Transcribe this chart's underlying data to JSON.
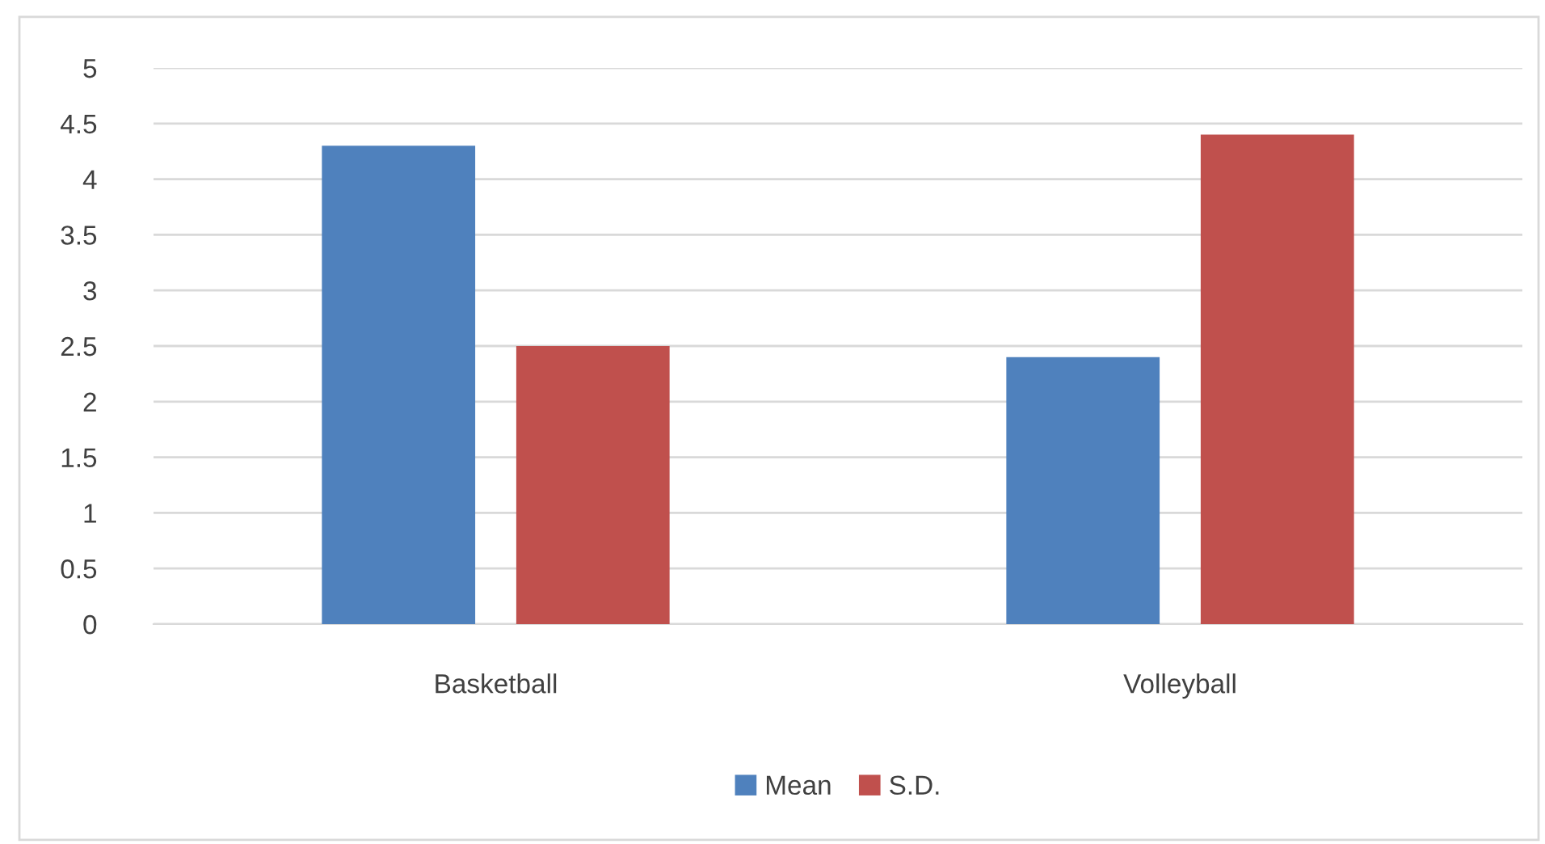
{
  "chart_data": {
    "type": "bar",
    "categories": [
      "Basketball",
      "Volleyball"
    ],
    "series": [
      {
        "name": "Mean",
        "color": "#4f81bd",
        "values": [
          4.3,
          2.4
        ]
      },
      {
        "name": "S.D.",
        "color": "#c0504d",
        "values": [
          2.5,
          4.4
        ]
      }
    ],
    "ylim": [
      0,
      5
    ],
    "yticks": [
      0,
      0.5,
      1,
      1.5,
      2,
      2.5,
      3,
      3.5,
      4,
      4.5,
      5
    ],
    "grid": "y",
    "legend": "bottom"
  }
}
